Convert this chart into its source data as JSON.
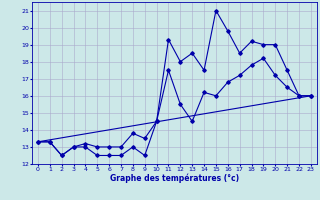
{
  "title": "Graphe des températures (°c)",
  "bg_color": "#cce8e8",
  "grid_color": "#aaaacc",
  "line_color": "#0000aa",
  "xlim": [
    -0.5,
    23.5
  ],
  "ylim": [
    12,
    21.5
  ],
  "yticks": [
    12,
    13,
    14,
    15,
    16,
    17,
    18,
    19,
    20,
    21
  ],
  "xticks": [
    0,
    1,
    2,
    3,
    4,
    5,
    6,
    7,
    8,
    9,
    10,
    11,
    12,
    13,
    14,
    15,
    16,
    17,
    18,
    19,
    20,
    21,
    22,
    23
  ],
  "series1_x": [
    0,
    1,
    2,
    3,
    4,
    5,
    6,
    7,
    8,
    9,
    10,
    11,
    12,
    13,
    14,
    15,
    16,
    17,
    18,
    19,
    20,
    21,
    22,
    23
  ],
  "series1_y": [
    13.3,
    13.3,
    12.5,
    13.0,
    13.0,
    12.5,
    12.5,
    12.5,
    13.0,
    12.5,
    14.5,
    19.3,
    18.0,
    18.5,
    17.5,
    21.0,
    19.8,
    18.5,
    19.2,
    19.0,
    19.0,
    17.5,
    16.0,
    16.0
  ],
  "series2_x": [
    0,
    1,
    2,
    3,
    4,
    5,
    6,
    7,
    8,
    9,
    10,
    11,
    12,
    13,
    14,
    15,
    16,
    17,
    18,
    19,
    20,
    21,
    22,
    23
  ],
  "series2_y": [
    13.3,
    13.3,
    12.5,
    13.0,
    13.2,
    13.0,
    13.0,
    13.0,
    13.8,
    13.5,
    14.5,
    17.5,
    15.5,
    14.5,
    16.2,
    16.0,
    16.8,
    17.2,
    17.8,
    18.2,
    17.2,
    16.5,
    16.0,
    16.0
  ],
  "trend_x": [
    0,
    23
  ],
  "trend_y": [
    13.3,
    16.0
  ],
  "marker_size": 1.8,
  "linewidth": 0.8
}
